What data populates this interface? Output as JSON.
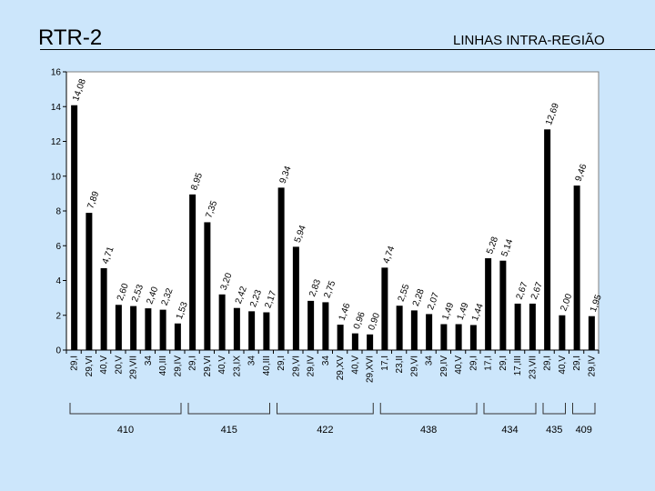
{
  "header": {
    "title": "RTR-2",
    "subtitle": "LINHAS INTRA-REGIÃO"
  },
  "chart_data": {
    "type": "bar",
    "title": "LINHAS INTRA-REGIÃO",
    "ylim": [
      0,
      16
    ],
    "yticks": [
      0,
      2,
      4,
      6,
      8,
      10,
      12,
      14,
      16
    ],
    "grid": false,
    "bar_color": "#000000",
    "plot_bg": "#ffffff",
    "bars": [
      {
        "category": "29,I",
        "value": 14.08,
        "label": "14,08"
      },
      {
        "category": "29,VI",
        "value": 7.89,
        "label": "7,89"
      },
      {
        "category": "40,V",
        "value": 4.71,
        "label": "4,71"
      },
      {
        "category": "20,V",
        "value": 2.6,
        "label": "2,60"
      },
      {
        "category": "29,VII",
        "value": 2.53,
        "label": "2,53"
      },
      {
        "category": "34",
        "value": 2.4,
        "label": "2,40"
      },
      {
        "category": "40,III",
        "value": 2.32,
        "label": "2,32"
      },
      {
        "category": "29,IV",
        "value": 1.53,
        "label": "1,53"
      },
      {
        "category": "29,I",
        "value": 8.95,
        "label": "8,95"
      },
      {
        "category": "29,VI",
        "value": 7.35,
        "label": "7,35"
      },
      {
        "category": "40,V",
        "value": 3.2,
        "label": "3,20"
      },
      {
        "category": "23,IX",
        "value": 2.42,
        "label": "2,42"
      },
      {
        "category": "34",
        "value": 2.23,
        "label": "2,23"
      },
      {
        "category": "40,III",
        "value": 2.17,
        "label": "2,17"
      },
      {
        "category": "29,I",
        "value": 9.34,
        "label": "9,34"
      },
      {
        "category": "29,VI",
        "value": 5.94,
        "label": "5,94"
      },
      {
        "category": "29,IV",
        "value": 2.83,
        "label": "2,83"
      },
      {
        "category": "34",
        "value": 2.75,
        "label": "2,75"
      },
      {
        "category": "29,XV",
        "value": 1.46,
        "label": "1,46"
      },
      {
        "category": "40,V",
        "value": 0.96,
        "label": "0,96"
      },
      {
        "category": "29,XVI",
        "value": 0.9,
        "label": "0,90"
      },
      {
        "category": "17,I",
        "value": 4.74,
        "label": "4,74"
      },
      {
        "category": "23,II",
        "value": 2.55,
        "label": "2,55"
      },
      {
        "category": "29,VI",
        "value": 2.28,
        "label": "2,28"
      },
      {
        "category": "34",
        "value": 2.07,
        "label": "2,07"
      },
      {
        "category": "29,IV",
        "value": 1.49,
        "label": "1,49"
      },
      {
        "category": "40,V",
        "value": 1.49,
        "label": "1,49"
      },
      {
        "category": "29,I",
        "value": 1.44,
        "label": "1,44"
      },
      {
        "category": "17,I",
        "value": 5.28,
        "label": "5,28"
      },
      {
        "category": "29,I",
        "value": 5.14,
        "label": "5,14"
      },
      {
        "category": "17,III",
        "value": 2.67,
        "label": "2,67"
      },
      {
        "category": "23,VII",
        "value": 2.67,
        "label": "2,67"
      },
      {
        "category": "29,I",
        "value": 12.69,
        "label": "12,69"
      },
      {
        "category": "40,V",
        "value": 2.0,
        "label": "2,00"
      },
      {
        "category": "29,I",
        "value": 9.46,
        "label": "9,46"
      },
      {
        "category": "29,IV",
        "value": 1.95,
        "label": "1,95"
      }
    ],
    "groups": [
      {
        "label": "410",
        "start": 0,
        "end": 7
      },
      {
        "label": "415",
        "start": 8,
        "end": 13
      },
      {
        "label": "422",
        "start": 14,
        "end": 20
      },
      {
        "label": "438",
        "start": 21,
        "end": 27
      },
      {
        "label": "434",
        "start": 28,
        "end": 31
      },
      {
        "label": "435",
        "start": 32,
        "end": 33
      },
      {
        "label": "409",
        "start": 34,
        "end": 35
      }
    ]
  }
}
